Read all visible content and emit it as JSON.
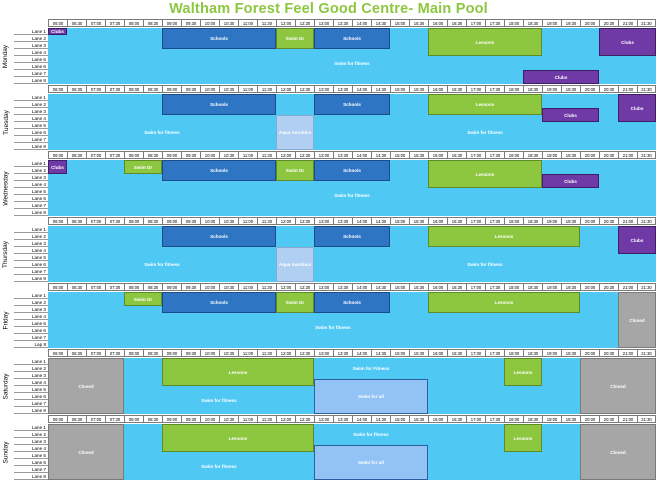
{
  "title": "Waltham Forest Feel Good Centre-  Main Pool",
  "times": [
    "06:00",
    "06:30",
    "07:00",
    "07:30",
    "08:00",
    "08:30",
    "09:00",
    "09:30",
    "10:00",
    "10:30",
    "11:00",
    "11:30",
    "12:00",
    "12:30",
    "13:00",
    "13:30",
    "14:00",
    "14:30",
    "15:00",
    "15:30",
    "16:00",
    "16:30",
    "17:00",
    "17:30",
    "18:00",
    "18:30",
    "19:00",
    "19:30",
    "20:00",
    "20:30",
    "21:00",
    "21:30"
  ],
  "colors": {
    "clubs": "#6f3aa6",
    "schools": "#2e75c3",
    "lessons": "#8dc63f",
    "swim_fitness": "#4fc8f4",
    "aqua": "#b0cff2",
    "swim_all": "#93c3f4",
    "closed": "#a6a6a6",
    "title": "#8dc63f"
  },
  "days": [
    {
      "name": "Monday",
      "lanes": [
        "Lane 1",
        "Lane 2",
        "Lane 3",
        "Lane 4",
        "Lane 5",
        "Lane 6",
        "Lane 7",
        "Lane 8"
      ],
      "blocks": [
        {
          "label": "Clubs",
          "type": "clubs",
          "start": "06:00",
          "end": "06:30",
          "lane_from": 1,
          "lane_to": 1
        },
        {
          "label": "Schools",
          "type": "schools",
          "start": "09:00",
          "end": "12:00",
          "lane_from": 1,
          "lane_to": 3
        },
        {
          "label": "Swim Dr",
          "type": "lessons",
          "start": "12:00",
          "end": "13:00",
          "lane_from": 1,
          "lane_to": 3
        },
        {
          "label": "Schools",
          "type": "schools",
          "start": "13:00",
          "end": "15:00",
          "lane_from": 1,
          "lane_to": 3
        },
        {
          "label": "Lessons",
          "type": "lessons",
          "start": "16:00",
          "end": "19:00",
          "lane_from": 1,
          "lane_to": 4
        },
        {
          "label": "Clubs",
          "type": "clubs",
          "start": "20:30",
          "end": "22:00",
          "lane_from": 1,
          "lane_to": 4
        },
        {
          "label": "Swim for fitness",
          "type": "swim_fitness",
          "start": "06:00",
          "end": "22:00",
          "lane_from": 5,
          "lane_to": 6
        },
        {
          "label": "Clubs",
          "type": "clubs",
          "start": "18:30",
          "end": "20:30",
          "lane_from": 7,
          "lane_to": 8
        }
      ]
    },
    {
      "name": "Tuesday",
      "lanes": [
        "Lane 1",
        "Lane 2",
        "Lane 3",
        "Lane 4",
        "Lane 5",
        "Lane 6",
        "Lane 7",
        "Lane 8"
      ],
      "blocks": [
        {
          "label": "Schools",
          "type": "schools",
          "start": "09:00",
          "end": "12:00",
          "lane_from": 1,
          "lane_to": 3
        },
        {
          "label": "Schools",
          "type": "schools",
          "start": "13:00",
          "end": "15:00",
          "lane_from": 1,
          "lane_to": 3
        },
        {
          "label": "Lessons",
          "type": "lessons",
          "start": "16:00",
          "end": "19:00",
          "lane_from": 1,
          "lane_to": 3
        },
        {
          "label": "Clubs",
          "type": "clubs",
          "start": "19:00",
          "end": "20:30",
          "lane_from": 3,
          "lane_to": 4
        },
        {
          "label": "Clubs",
          "type": "clubs",
          "start": "21:00",
          "end": "22:00",
          "lane_from": 1,
          "lane_to": 4
        },
        {
          "label": "Swim for fitness",
          "type": "swim_fitness",
          "start": "06:00",
          "end": "12:00",
          "lane_from": 4,
          "lane_to": 8
        },
        {
          "label": "Aqua Aerobics",
          "type": "aqua",
          "start": "12:00",
          "end": "13:00",
          "lane_from": 4,
          "lane_to": 8
        },
        {
          "label": "Swim for fitness",
          "type": "swim_fitness",
          "start": "13:00",
          "end": "22:00",
          "lane_from": 4,
          "lane_to": 8
        }
      ]
    },
    {
      "name": "Wednesday",
      "lanes": [
        "Lane 1",
        "Lane 2",
        "Lane 3",
        "Lane 4",
        "Lane 5",
        "Lane 6",
        "Lane 7",
        "Lane 8"
      ],
      "blocks": [
        {
          "label": "Clubs",
          "type": "clubs",
          "start": "06:00",
          "end": "06:30",
          "lane_from": 1,
          "lane_to": 2
        },
        {
          "label": "Swim Dr",
          "type": "lessons",
          "start": "08:00",
          "end": "09:00",
          "lane_from": 1,
          "lane_to": 2
        },
        {
          "label": "Schools",
          "type": "schools",
          "start": "09:00",
          "end": "12:00",
          "lane_from": 1,
          "lane_to": 3
        },
        {
          "label": "Swim Dr",
          "type": "lessons",
          "start": "12:00",
          "end": "13:00",
          "lane_from": 1,
          "lane_to": 3
        },
        {
          "label": "Schools",
          "type": "schools",
          "start": "13:00",
          "end": "15:00",
          "lane_from": 1,
          "lane_to": 3
        },
        {
          "label": "Lessons",
          "type": "lessons",
          "start": "16:00",
          "end": "19:00",
          "lane_from": 1,
          "lane_to": 4
        },
        {
          "label": "Clubs",
          "type": "clubs",
          "start": "19:00",
          "end": "20:30",
          "lane_from": 3,
          "lane_to": 4
        },
        {
          "label": "Swim for fitness",
          "type": "swim_fitness",
          "start": "06:00",
          "end": "22:00",
          "lane_from": 5,
          "lane_to": 6
        }
      ]
    },
    {
      "name": "Thursday",
      "lanes": [
        "Lane 1",
        "Lane 2",
        "Lane 3",
        "Lane 4",
        "Lane 5",
        "Lane 6",
        "Lane 7",
        "Lane 8"
      ],
      "blocks": [
        {
          "label": "Schools",
          "type": "schools",
          "start": "09:00",
          "end": "12:00",
          "lane_from": 1,
          "lane_to": 3
        },
        {
          "label": "Schools",
          "type": "schools",
          "start": "13:00",
          "end": "15:00",
          "lane_from": 1,
          "lane_to": 3
        },
        {
          "label": "Lessons",
          "type": "lessons",
          "start": "16:00",
          "end": "20:00",
          "lane_from": 1,
          "lane_to": 3
        },
        {
          "label": "Clubs",
          "type": "clubs",
          "start": "21:00",
          "end": "22:00",
          "lane_from": 1,
          "lane_to": 4
        },
        {
          "label": "Swim for fitness",
          "type": "swim_fitness",
          "start": "06:00",
          "end": "12:00",
          "lane_from": 4,
          "lane_to": 8
        },
        {
          "label": "Aqua Aerobics",
          "type": "aqua",
          "start": "12:00",
          "end": "13:00",
          "lane_from": 4,
          "lane_to": 8
        },
        {
          "label": "Swim for fitness",
          "type": "swim_fitness",
          "start": "13:00",
          "end": "22:00",
          "lane_from": 4,
          "lane_to": 8
        }
      ]
    },
    {
      "name": "Friday",
      "lanes": [
        "Lane 1",
        "Lane 2",
        "Lane 3",
        "Lane 4",
        "Lane 5",
        "Lane 6",
        "Lane 7",
        "Lap 8"
      ],
      "blocks": [
        {
          "label": "Swim Dr",
          "type": "lessons",
          "start": "08:00",
          "end": "09:00",
          "lane_from": 1,
          "lane_to": 2
        },
        {
          "label": "Schools",
          "type": "schools",
          "start": "09:00",
          "end": "12:00",
          "lane_from": 1,
          "lane_to": 3
        },
        {
          "label": "Swim Dr",
          "type": "lessons",
          "start": "12:00",
          "end": "13:00",
          "lane_from": 1,
          "lane_to": 3
        },
        {
          "label": "Schools",
          "type": "schools",
          "start": "13:00",
          "end": "15:00",
          "lane_from": 1,
          "lane_to": 3
        },
        {
          "label": "Lessons",
          "type": "lessons",
          "start": "16:00",
          "end": "20:00",
          "lane_from": 1,
          "lane_to": 3
        },
        {
          "label": "Closed",
          "type": "closed",
          "start": "21:00",
          "end": "22:00",
          "lane_from": 1,
          "lane_to": 8
        },
        {
          "label": "Swim for fitness",
          "type": "swim_fitness",
          "start": "06:00",
          "end": "21:00",
          "lane_from": 5,
          "lane_to": 6
        }
      ]
    },
    {
      "name": "Saturday",
      "lanes": [
        "Lane 1",
        "Lane 2",
        "Lane 3",
        "Lane 4",
        "Lane 5",
        "Lane 6",
        "Lane 7",
        "Lane 8"
      ],
      "blocks": [
        {
          "label": "Closed",
          "type": "closed",
          "start": "06:00",
          "end": "08:00",
          "lane_from": 1,
          "lane_to": 8
        },
        {
          "label": "Lessons",
          "type": "lessons",
          "start": "09:00",
          "end": "13:00",
          "lane_from": 1,
          "lane_to": 4
        },
        {
          "label": "Swim for Fitness",
          "type": "swim_fitness",
          "start": "13:00",
          "end": "16:00",
          "lane_from": 1,
          "lane_to": 3
        },
        {
          "label": "Lessons",
          "type": "lessons",
          "start": "18:00",
          "end": "19:00",
          "lane_from": 1,
          "lane_to": 4
        },
        {
          "label": "Closed",
          "type": "closed",
          "start": "20:00",
          "end": "22:00",
          "lane_from": 1,
          "lane_to": 8
        },
        {
          "label": "Swim for fitness",
          "type": "swim_fitness",
          "start": "08:00",
          "end": "13:00",
          "lane_from": 5,
          "lane_to": 8
        },
        {
          "label": "Swim for all",
          "type": "swim_all",
          "start": "13:00",
          "end": "16:00",
          "lane_from": 4,
          "lane_to": 8
        }
      ]
    },
    {
      "name": "Sunday",
      "lanes": [
        "Lane 1",
        "Lane 2",
        "Lane 3",
        "Lane 4",
        "Lane 5",
        "Lane 6",
        "Lane 7",
        "Lane 8"
      ],
      "blocks": [
        {
          "label": "Closed",
          "type": "closed",
          "start": "06:00",
          "end": "08:00",
          "lane_from": 1,
          "lane_to": 8
        },
        {
          "label": "Lessons",
          "type": "lessons",
          "start": "09:00",
          "end": "13:00",
          "lane_from": 1,
          "lane_to": 4
        },
        {
          "label": "Swim for fitness",
          "type": "swim_fitness",
          "start": "13:00",
          "end": "16:00",
          "lane_from": 1,
          "lane_to": 3
        },
        {
          "label": "Lessons",
          "type": "lessons",
          "start": "18:00",
          "end": "19:00",
          "lane_from": 1,
          "lane_to": 4
        },
        {
          "label": "Closed",
          "type": "closed",
          "start": "20:00",
          "end": "22:00",
          "lane_from": 1,
          "lane_to": 8
        },
        {
          "label": "Swim for fitness",
          "type": "swim_fitness",
          "start": "08:00",
          "end": "13:00",
          "lane_from": 5,
          "lane_to": 8
        },
        {
          "label": "Swim for all",
          "type": "swim_all",
          "start": "13:00",
          "end": "16:00",
          "lane_from": 4,
          "lane_to": 8
        }
      ]
    }
  ]
}
